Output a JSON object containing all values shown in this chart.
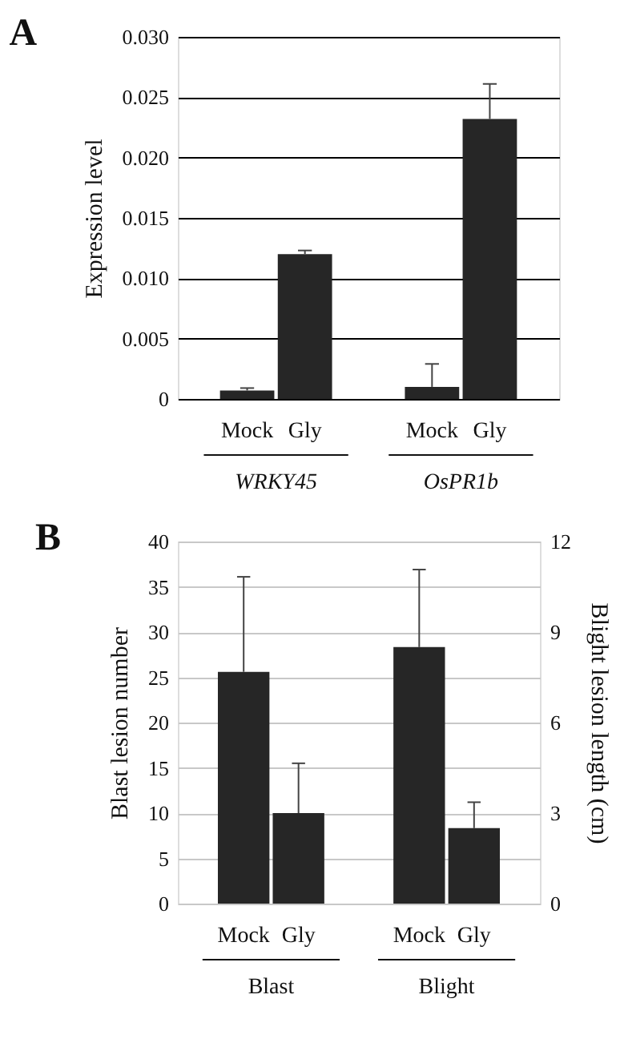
{
  "chart_data": [
    {
      "type": "bar",
      "title": "A",
      "ylabel": "Expression level",
      "categories": [
        "Mock",
        "Gly",
        "Mock",
        "Gly"
      ],
      "values": [
        0.0007,
        0.012,
        0.001,
        0.0232
      ],
      "color": "#262626",
      "errors": [
        [
          0.0007,
          0.0009
        ],
        [
          0.012,
          0.0123
        ],
        [
          0.001,
          0.0029
        ],
        [
          0.0232,
          0.0261
        ]
      ],
      "ylim": [
        0,
        0.03
      ],
      "yticks": [
        0,
        {
          "value": 0.005,
          "label": "0.005"
        },
        {
          "value": 0.01,
          "label": "0.010"
        },
        {
          "value": 0.015,
          "label": "0.015"
        },
        {
          "value": 0.02,
          "label": "0.020"
        },
        {
          "value": 0.025,
          "label": "0.025"
        },
        {
          "value": 0.03,
          "label": "0.030"
        }
      ],
      "grid": "y",
      "annotations": [
        "WRKY45",
        "OsPR1b"
      ]
    },
    {
      "type": "bar",
      "title": "B",
      "ylabel": "Blast lesion number",
      "y2label": "Blight lesion length (cm)",
      "categories": [
        "Mock",
        "Gly",
        "Mock",
        "Gly"
      ],
      "series": [
        {
          "color": "#262626",
          "values": [
            25.6,
            10,
            null,
            null
          ],
          "errors": [
            [
              25.6,
              36.1
            ],
            [
              10,
              15.5
            ],
            null,
            null
          ]
        },
        {
          "color": "#262626",
          "axis": "y2",
          "values": [
            null,
            null,
            8.5,
            2.5
          ],
          "errors": [
            null,
            null,
            [
              8.5,
              11.07
            ],
            [
              2.5,
              3.36
            ]
          ]
        }
      ],
      "ylim": [
        0,
        40
      ],
      "yticks": [
        0,
        5,
        10,
        15,
        20,
        25,
        30,
        35,
        40
      ],
      "y2lim": [
        0,
        12
      ],
      "y2ticks": [
        0,
        3,
        6,
        9,
        12
      ],
      "grid": "y",
      "annotations": [
        "Blast",
        "Blight"
      ]
    }
  ]
}
